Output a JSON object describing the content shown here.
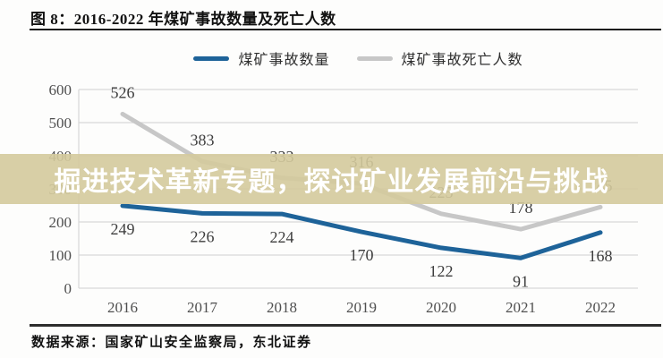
{
  "figure": {
    "title": "图 8：2016-2022 年煤矿事故数量及死亡人数",
    "source": "数据来源：国家矿山安全监察局，东北证券"
  },
  "overlay": {
    "text": "掘进技术革新专题，探讨矿业发展前沿与挑战",
    "background": "#d4ca9c",
    "background_alpha_hex": "e6",
    "text_color": "#ffffff"
  },
  "chart_data": {
    "type": "line",
    "categories": [
      "2016",
      "2017",
      "2018",
      "2019",
      "2020",
      "2021",
      "2022"
    ],
    "series": [
      {
        "name": "煤矿事故数量",
        "color": "#1e6399",
        "values": [
          249,
          226,
          224,
          170,
          122,
          91,
          168
        ],
        "label_position": "below"
      },
      {
        "name": "煤矿事故死亡人数",
        "color": "#c7c7c7",
        "values": [
          526,
          383,
          333,
          316,
          225,
          178,
          245
        ],
        "label_position": "above"
      }
    ],
    "title": "图 8：2016-2022 年煤矿事故数量及死亡人数",
    "xlabel": "",
    "ylabel": "",
    "ylim": [
      0,
      600
    ],
    "ytick_interval": 100,
    "grid": true,
    "gridline_color": "#d8d8d8",
    "legend_position": "top"
  }
}
